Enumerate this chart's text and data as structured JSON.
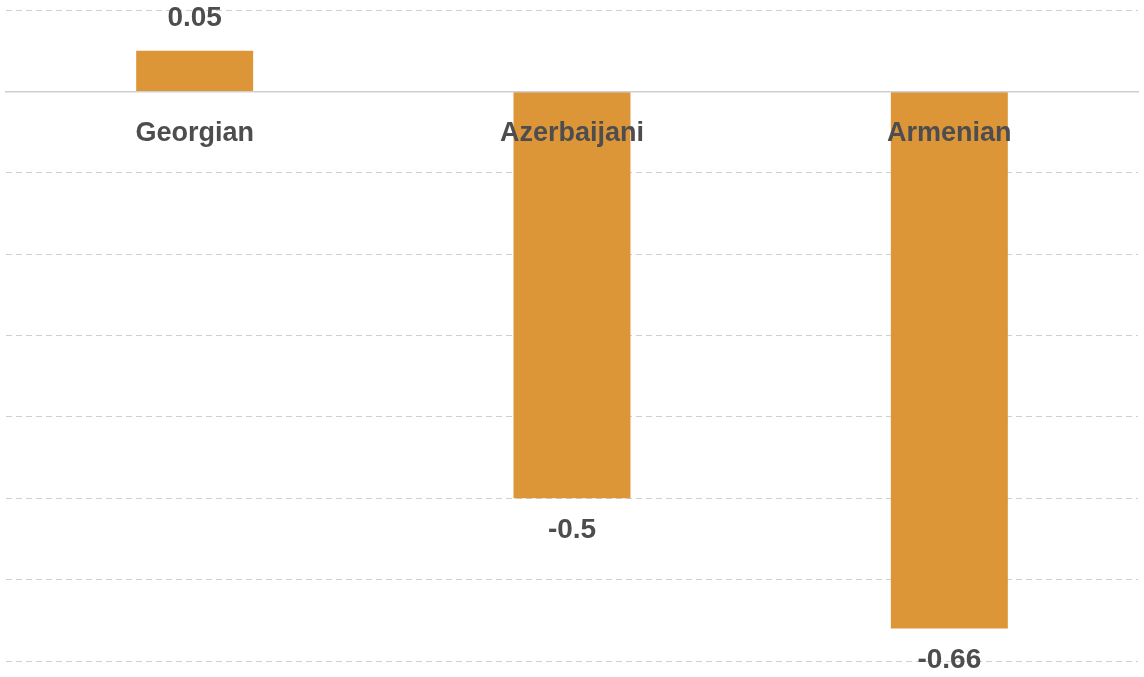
{
  "chart_data": {
    "type": "bar",
    "categories": [
      "Georgian",
      "Azerbaijani",
      "Armenian"
    ],
    "values": [
      0.05,
      -0.5,
      -0.66
    ],
    "color": "#dd9637",
    "ylim": [
      -0.7,
      0.1
    ],
    "yticks": [
      {
        "value": 0.1,
        "label": null
      },
      {
        "value": 0,
        "label": null
      },
      {
        "value": -0.1,
        "label": null
      },
      {
        "value": -0.2,
        "label": null
      },
      {
        "value": -0.3,
        "label": null
      },
      {
        "value": -0.4,
        "label": null
      },
      {
        "value": -0.5,
        "label": null
      },
      {
        "value": -0.6,
        "label": null
      },
      {
        "value": -0.7,
        "label": null
      }
    ],
    "grid": "y",
    "tick_labels": "x",
    "data_labels": true,
    "legend": false
  }
}
